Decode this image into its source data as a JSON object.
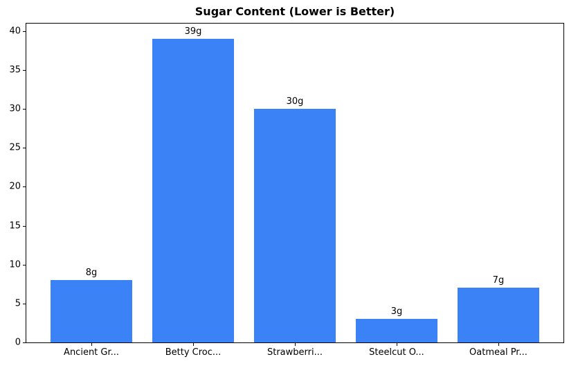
{
  "chart_data": {
    "type": "bar",
    "title": "Sugar Content (Lower is Better)",
    "categories": [
      "Ancient Gr...",
      "Betty Croc...",
      "Strawberri...",
      "Steelcut O...",
      "Oatmeal Pr..."
    ],
    "values": [
      8,
      39,
      30,
      3,
      7
    ],
    "bar_labels": [
      "8g",
      "39g",
      "30g",
      "3g",
      "7g"
    ],
    "bar_color": "#3b82f6",
    "xlabel": "",
    "ylabel": "",
    "yticks": [
      0,
      5,
      10,
      15,
      20,
      25,
      30,
      35,
      40
    ],
    "ylim": [
      0,
      40.95
    ],
    "xlim": [
      -0.64,
      4.64
    ],
    "bar_width_units": 0.8,
    "grid": false,
    "legend": "none",
    "text_color": "#000000",
    "background_color": "#ffffff"
  }
}
